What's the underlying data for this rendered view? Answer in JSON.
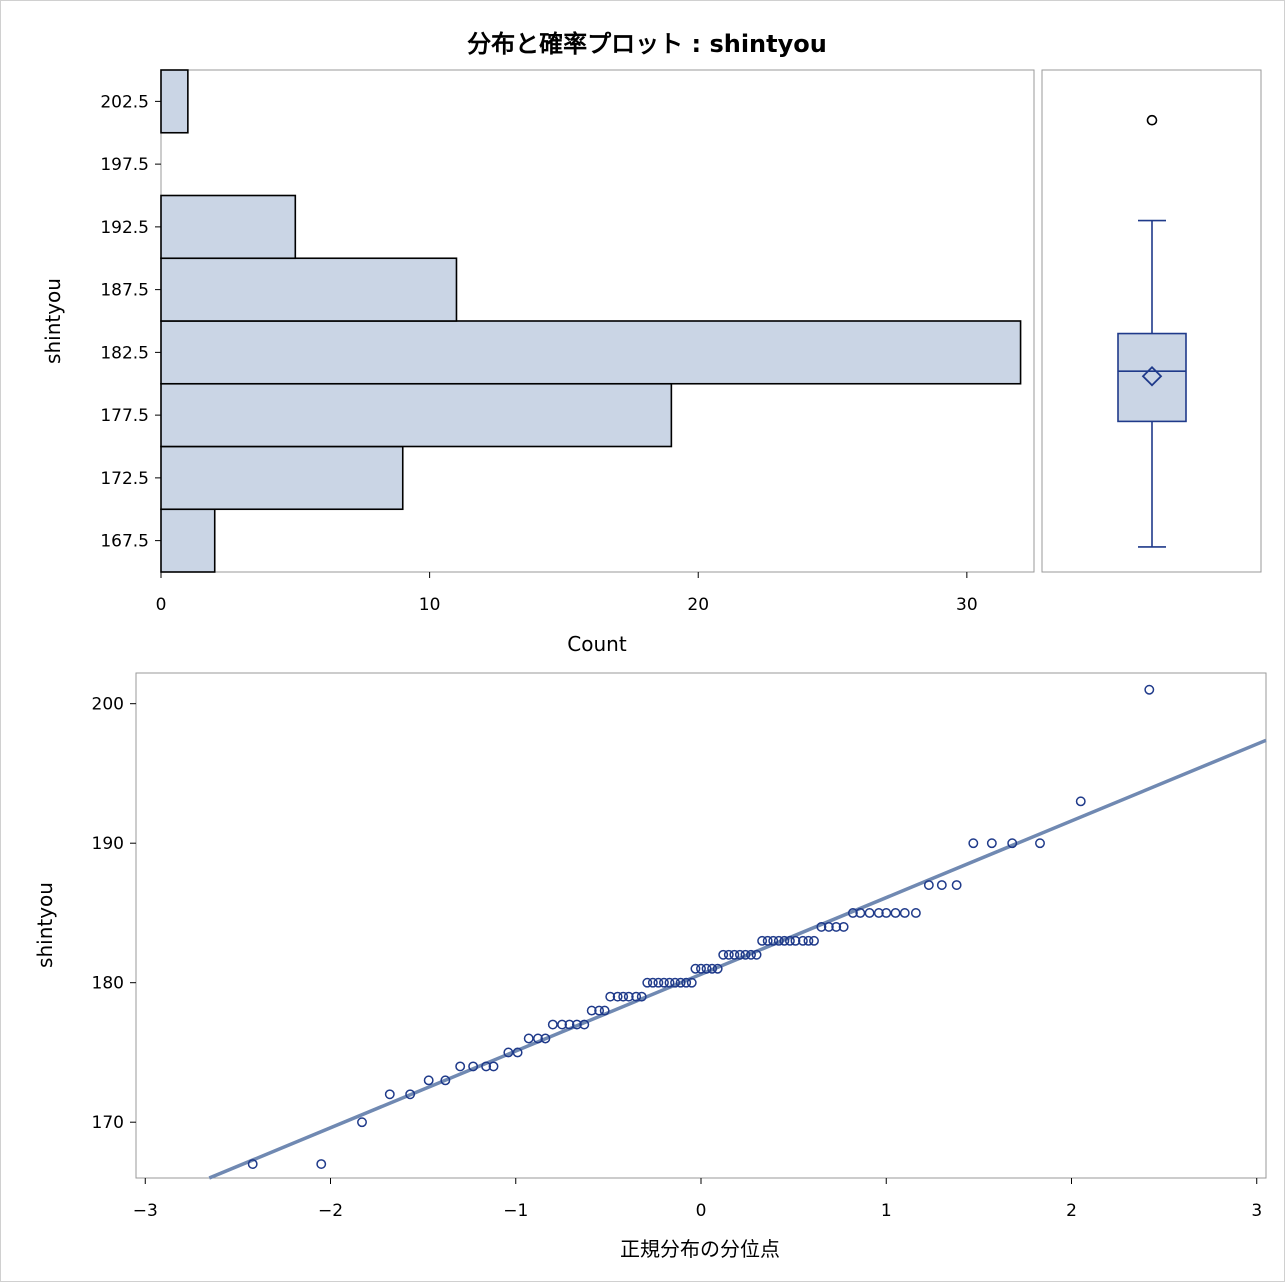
{
  "title": "分布と確率プロット : shintyou",
  "chart_data": [
    {
      "type": "bar",
      "orientation": "horizontal",
      "categories": [
        "167.5",
        "172.5",
        "177.5",
        "182.5",
        "187.5",
        "192.5",
        "197.5",
        "202.5"
      ],
      "bin_midpoints": [
        167.5,
        172.5,
        177.5,
        182.5,
        187.5,
        192.5,
        197.5,
        202.5
      ],
      "values": [
        2,
        9,
        19,
        32,
        11,
        5,
        0,
        1
      ],
      "xlabel": "Count",
      "ylabel": "shintyou",
      "xlim": [
        0,
        32.5
      ],
      "xticks": [
        "0",
        "10",
        "20",
        "30"
      ],
      "ylim": [
        165,
        205
      ],
      "color": "#cad5e5",
      "edge_color": "#000000"
    },
    {
      "type": "box",
      "min": 167,
      "q1": 177,
      "median": 181,
      "q3": 184,
      "max": 193,
      "mean": 180.6,
      "outliers": [
        201
      ],
      "ylim": [
        165,
        205
      ],
      "color": "#cad5e5",
      "line_color": "#1f3a8a"
    },
    {
      "type": "scatter",
      "xlabel": "正規分布の分位点",
      "ylabel": "shintyou",
      "xlim": [
        -3.05,
        3.05
      ],
      "ylim": [
        166,
        202.2
      ],
      "xticks": [
        "−3",
        "−2",
        "−1",
        "0",
        "1",
        "2",
        "3"
      ],
      "yticks": [
        "170",
        "180",
        "190",
        "200"
      ],
      "points": [
        [
          -2.42,
          167
        ],
        [
          -2.05,
          167
        ],
        [
          -1.83,
          170
        ],
        [
          -1.68,
          172
        ],
        [
          -1.57,
          172
        ],
        [
          -1.47,
          173
        ],
        [
          -1.38,
          173
        ],
        [
          -1.3,
          174
        ],
        [
          -1.23,
          174
        ],
        [
          -1.16,
          174
        ],
        [
          -1.12,
          174
        ],
        [
          -1.04,
          175
        ],
        [
          -0.99,
          175
        ],
        [
          -0.93,
          176
        ],
        [
          -0.88,
          176
        ],
        [
          -0.84,
          176
        ],
        [
          -0.8,
          177
        ],
        [
          -0.75,
          177
        ],
        [
          -0.71,
          177
        ],
        [
          -0.67,
          177
        ],
        [
          -0.63,
          177
        ],
        [
          -0.59,
          178
        ],
        [
          -0.55,
          178
        ],
        [
          -0.52,
          178
        ],
        [
          -0.49,
          179
        ],
        [
          -0.45,
          179
        ],
        [
          -0.42,
          179
        ],
        [
          -0.39,
          179
        ],
        [
          -0.35,
          179
        ],
        [
          -0.32,
          179
        ],
        [
          -0.29,
          180
        ],
        [
          -0.26,
          180
        ],
        [
          -0.23,
          180
        ],
        [
          -0.2,
          180
        ],
        [
          -0.17,
          180
        ],
        [
          -0.14,
          180
        ],
        [
          -0.11,
          180
        ],
        [
          -0.08,
          180
        ],
        [
          -0.05,
          180
        ],
        [
          -0.03,
          181
        ],
        [
          0.0,
          181
        ],
        [
          0.03,
          181
        ],
        [
          0.06,
          181
        ],
        [
          0.09,
          181
        ],
        [
          0.12,
          182
        ],
        [
          0.15,
          182
        ],
        [
          0.18,
          182
        ],
        [
          0.21,
          182
        ],
        [
          0.24,
          182
        ],
        [
          0.27,
          182
        ],
        [
          0.3,
          182
        ],
        [
          0.33,
          183
        ],
        [
          0.36,
          183
        ],
        [
          0.39,
          183
        ],
        [
          0.42,
          183
        ],
        [
          0.45,
          183
        ],
        [
          0.48,
          183
        ],
        [
          0.51,
          183
        ],
        [
          0.55,
          183
        ],
        [
          0.58,
          183
        ],
        [
          0.61,
          183
        ],
        [
          0.65,
          184
        ],
        [
          0.69,
          184
        ],
        [
          0.73,
          184
        ],
        [
          0.77,
          184
        ],
        [
          0.82,
          185
        ],
        [
          0.86,
          185
        ],
        [
          0.91,
          185
        ],
        [
          0.96,
          185
        ],
        [
          1.0,
          185
        ],
        [
          1.05,
          185
        ],
        [
          1.1,
          185
        ],
        [
          1.16,
          185
        ],
        [
          1.23,
          187
        ],
        [
          1.3,
          187
        ],
        [
          1.38,
          187
        ],
        [
          1.47,
          190
        ],
        [
          1.57,
          190
        ],
        [
          1.68,
          190
        ],
        [
          1.83,
          190
        ],
        [
          2.05,
          193
        ],
        [
          2.42,
          201
        ]
      ],
      "reference_line": {
        "intercept": 180.6,
        "slope": 5.5
      },
      "point_color": "#1f3a8a",
      "line_color": "#7089b2"
    }
  ]
}
